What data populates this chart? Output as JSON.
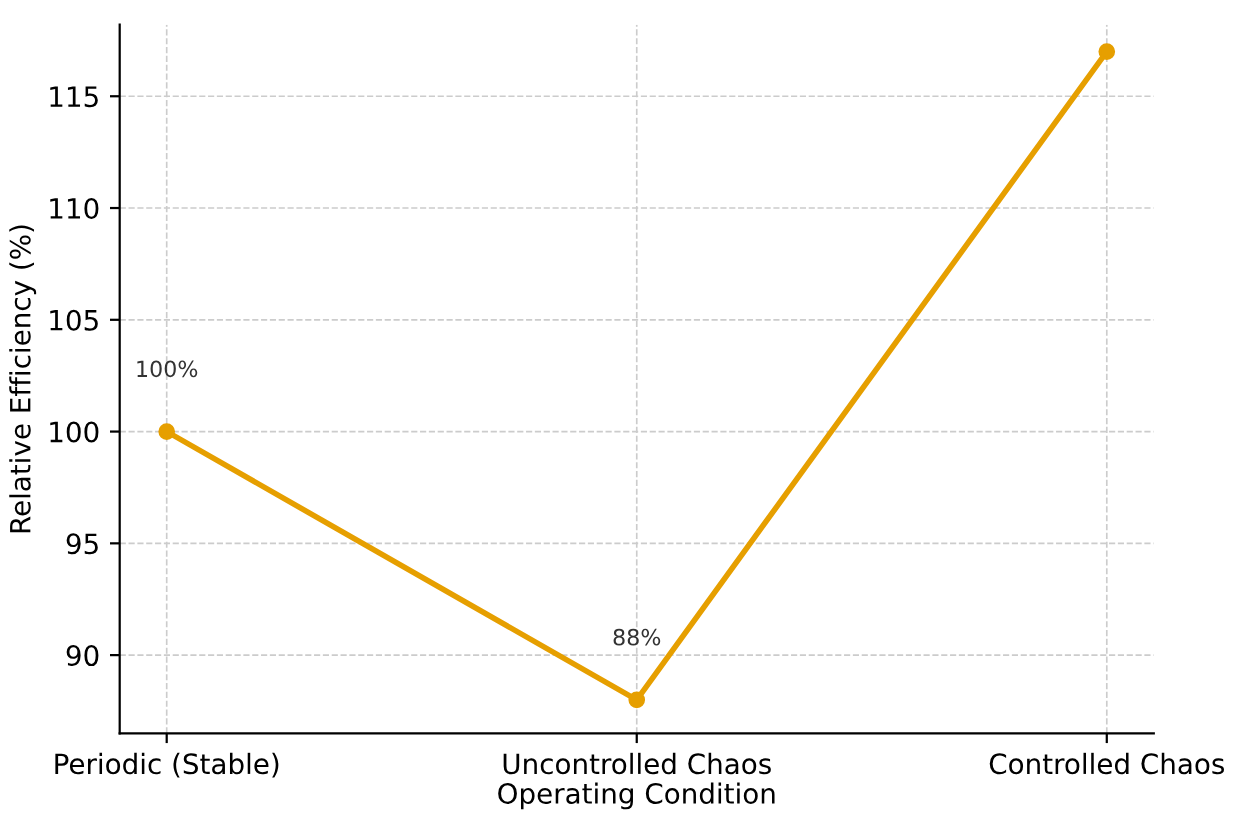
{
  "chart_data": {
    "type": "line",
    "xlabel": "Operating Condition",
    "ylabel": "Relative Efficiency (%)",
    "categories": [
      "Periodic (Stable)",
      "Uncontrolled Chaos",
      "Controlled Chaos"
    ],
    "series": [
      {
        "color": "#e69f00",
        "values": [
          100,
          88,
          117
        ],
        "value_labels": [
          "100%",
          "88%",
          null
        ]
      }
    ],
    "ylim": [
      86.5,
      118.2
    ],
    "yticks": [
      90,
      95,
      100,
      105,
      110,
      115
    ],
    "grid": true,
    "marker": "circle",
    "line_style": "solid",
    "legend": false
  }
}
